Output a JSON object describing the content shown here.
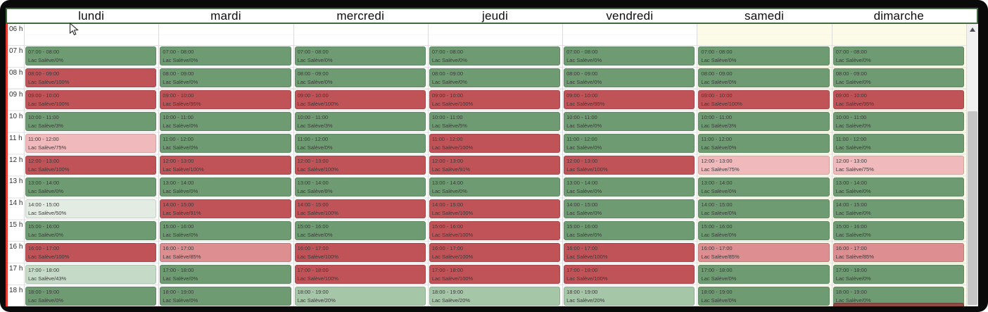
{
  "calendar": {
    "venue": "Lac Salève",
    "hour_labels": [
      "06 h",
      "07 h",
      "08 h",
      "09 h",
      "10 h",
      "11 h",
      "12 h",
      "13 h",
      "14 h",
      "15 h",
      "16 h",
      "17 h",
      "18 h"
    ],
    "color_scale": [
      {
        "min_pct": 91,
        "hex": "#c05357"
      },
      {
        "min_pct": 85,
        "hex": "#dd8e90"
      },
      {
        "min_pct": 75,
        "hex": "#f0b9bc"
      },
      {
        "min_pct": 50,
        "hex": "#e3ece3"
      },
      {
        "min_pct": 43,
        "hex": "#c6dbc7"
      },
      {
        "min_pct": 20,
        "hex": "#a6c6a8"
      },
      {
        "min_pct": 0,
        "hex": "#6f9b72"
      }
    ],
    "accent_colors": {
      "header_border": "#3f6b3f",
      "gutter_line": "#e6392f",
      "cutoff_event": "#8e4a43"
    },
    "days": [
      {
        "label": "lundi",
        "weekend": false,
        "cutoff_next_event": false,
        "events": [
          {
            "time": "07:00 - 08:00",
            "label": "Lac Salève/0%",
            "pct": 0
          },
          {
            "time": "08:00 - 09:00",
            "label": "Lac Salève/100%",
            "pct": 100
          },
          {
            "time": "09:00 - 10:00",
            "label": "Lac Salève/100%",
            "pct": 100
          },
          {
            "time": "10:00 - 11:00",
            "label": "Lac Salève/3%",
            "pct": 3
          },
          {
            "time": "11:00 - 12:00",
            "label": "Lac Salève/75%",
            "pct": 75
          },
          {
            "time": "12:00 - 13:00",
            "label": "Lac Salève/100%",
            "pct": 100
          },
          {
            "time": "13:00 - 14:00",
            "label": "Lac Salève/0%",
            "pct": 0
          },
          {
            "time": "14:00 - 15:00",
            "label": "Lac Salève/50%",
            "pct": 50
          },
          {
            "time": "15:00 - 16:00",
            "label": "Lac Salève/0%",
            "pct": 0
          },
          {
            "time": "16:00 - 17:00",
            "label": "Lac Salève/100%",
            "pct": 100
          },
          {
            "time": "17:00 - 18:00",
            "label": "Lac Salève/43%",
            "pct": 43
          },
          {
            "time": "18:00 - 19:00",
            "label": "Lac Salève/0%",
            "pct": 0
          }
        ]
      },
      {
        "label": "mardi",
        "weekend": false,
        "cutoff_next_event": false,
        "events": [
          {
            "time": "07:00 - 08:00",
            "label": "Lac Salève/0%",
            "pct": 0
          },
          {
            "time": "08:00 - 09:00",
            "label": "Lac Salève/0%",
            "pct": 0
          },
          {
            "time": "09:00 - 10:00",
            "label": "Lac Salève/95%",
            "pct": 95
          },
          {
            "time": "10:00 - 11:00",
            "label": "Lac Salève/0%",
            "pct": 0
          },
          {
            "time": "11:00 - 12:00",
            "label": "Lac Salève/0%",
            "pct": 0
          },
          {
            "time": "12:00 - 13:00",
            "label": "Lac Salève/100%",
            "pct": 100
          },
          {
            "time": "13:00 - 14:00",
            "label": "Lac Salève/0%",
            "pct": 0
          },
          {
            "time": "14:00 - 15:00",
            "label": "Lac Salève/91%",
            "pct": 91
          },
          {
            "time": "15:00 - 16:00",
            "label": "Lac Salève/0%",
            "pct": 0
          },
          {
            "time": "16:00 - 17:00",
            "label": "Lac Salève/85%",
            "pct": 85
          },
          {
            "time": "17:00 - 18:00",
            "label": "Lac Salève/0%",
            "pct": 0
          },
          {
            "time": "18:00 - 19:00",
            "label": "Lac Salève/0%",
            "pct": 0
          }
        ]
      },
      {
        "label": "mercredi",
        "weekend": false,
        "cutoff_next_event": false,
        "events": [
          {
            "time": "07:00 - 08:00",
            "label": "Lac Salève/0%",
            "pct": 0
          },
          {
            "time": "08:00 - 09:00",
            "label": "Lac Salève/0%",
            "pct": 0
          },
          {
            "time": "09:00 - 10:00",
            "label": "Lac Salève/100%",
            "pct": 100
          },
          {
            "time": "10:00 - 11:00",
            "label": "Lac Salève/3%",
            "pct": 3
          },
          {
            "time": "11:00 - 12:00",
            "label": "Lac Salève/0%",
            "pct": 0
          },
          {
            "time": "12:00 - 13:00",
            "label": "Lac Salève/100%",
            "pct": 100
          },
          {
            "time": "13:00 - 14:00",
            "label": "Lac Salève/8%",
            "pct": 8
          },
          {
            "time": "14:00 - 15:00",
            "label": "Lac Salève/100%",
            "pct": 100
          },
          {
            "time": "15:00 - 16:00",
            "label": "Lac Salève/0%",
            "pct": 0
          },
          {
            "time": "16:00 - 17:00",
            "label": "Lac Salève/100%",
            "pct": 100
          },
          {
            "time": "17:00 - 18:00",
            "label": "Lac Salève/100%",
            "pct": 100
          },
          {
            "time": "18:00 - 19:00",
            "label": "Lac Salève/20%",
            "pct": 20
          }
        ]
      },
      {
        "label": "jeudi",
        "weekend": false,
        "cutoff_next_event": false,
        "events": [
          {
            "time": "07:00 - 08:00",
            "label": "Lac Salève/0%",
            "pct": 0
          },
          {
            "time": "08:00 - 09:00",
            "label": "Lac Salève/0%",
            "pct": 0
          },
          {
            "time": "09:00 - 10:00",
            "label": "Lac Salève/100%",
            "pct": 100
          },
          {
            "time": "10:00 - 11:00",
            "label": "Lac Salève/5%",
            "pct": 5
          },
          {
            "time": "11:00 - 12:00",
            "label": "Lac Salève/100%",
            "pct": 100
          },
          {
            "time": "12:00 - 13:00",
            "label": "Lac Salève/91%",
            "pct": 91
          },
          {
            "time": "13:00 - 14:00",
            "label": "Lac Salève/0%",
            "pct": 0
          },
          {
            "time": "14:00 - 15:00",
            "label": "Lac Salève/100%",
            "pct": 100
          },
          {
            "time": "15:00 - 16:00",
            "label": "Lac Salève/100%",
            "pct": 100
          },
          {
            "time": "16:00 - 17:00",
            "label": "Lac Salève/100%",
            "pct": 100
          },
          {
            "time": "17:00 - 18:00",
            "label": "Lac Salève/100%",
            "pct": 100
          },
          {
            "time": "18:00 - 19:00",
            "label": "Lac Salève/20%",
            "pct": 20
          }
        ]
      },
      {
        "label": "vendredi",
        "weekend": false,
        "cutoff_next_event": false,
        "events": [
          {
            "time": "07:00 - 08:00",
            "label": "Lac Salève/0%",
            "pct": 0
          },
          {
            "time": "08:00 - 09:00",
            "label": "Lac Salève/0%",
            "pct": 0
          },
          {
            "time": "09:00 - 10:00",
            "label": "Lac Salève/95%",
            "pct": 95
          },
          {
            "time": "10:00 - 11:00",
            "label": "Lac Salève/0%",
            "pct": 0
          },
          {
            "time": "11:00 - 12:00",
            "label": "Lac Salève/0%",
            "pct": 0
          },
          {
            "time": "12:00 - 13:00",
            "label": "Lac Salève/100%",
            "pct": 100
          },
          {
            "time": "13:00 - 14:00",
            "label": "Lac Salève/0%",
            "pct": 0
          },
          {
            "time": "14:00 - 15:00",
            "label": "Lac Salève/0%",
            "pct": 0
          },
          {
            "time": "15:00 - 16:00",
            "label": "Lac Salève/0%",
            "pct": 0
          },
          {
            "time": "16:00 - 17:00",
            "label": "Lac Salève/100%",
            "pct": 100
          },
          {
            "time": "17:00 - 18:00",
            "label": "Lac Salève/100%",
            "pct": 100
          },
          {
            "time": "18:00 - 19:00",
            "label": "Lac Salève/20%",
            "pct": 20
          }
        ]
      },
      {
        "label": "samedi",
        "weekend": true,
        "cutoff_next_event": false,
        "events": [
          {
            "time": "07:00 - 08:00",
            "label": "Lac Salève/0%",
            "pct": 0
          },
          {
            "time": "08:00 - 09:00",
            "label": "Lac Salève/0%",
            "pct": 0
          },
          {
            "time": "09:00 - 10:00",
            "label": "Lac Salève/100%",
            "pct": 100
          },
          {
            "time": "10:00 - 11:00",
            "label": "Lac Salève/3%",
            "pct": 3
          },
          {
            "time": "11:00 - 12:00",
            "label": "Lac Salève/0%",
            "pct": 0
          },
          {
            "time": "12:00 - 13:00",
            "label": "Lac Salève/75%",
            "pct": 75
          },
          {
            "time": "13:00 - 14:00",
            "label": "Lac Salève/0%",
            "pct": 0
          },
          {
            "time": "14:00 - 15:00",
            "label": "Lac Salève/0%",
            "pct": 0
          },
          {
            "time": "15:00 - 16:00",
            "label": "Lac Salève/0%",
            "pct": 0
          },
          {
            "time": "16:00 - 17:00",
            "label": "Lac Salève/85%",
            "pct": 85
          },
          {
            "time": "17:00 - 18:00",
            "label": "Lac Salève/0%",
            "pct": 0
          },
          {
            "time": "18:00 - 19:00",
            "label": "Lac Salève/0%",
            "pct": 0
          }
        ]
      },
      {
        "label": "dimarche",
        "weekend": true,
        "cutoff_next_event": true,
        "events": [
          {
            "time": "07:00 - 08:00",
            "label": "Lac Salève/0%",
            "pct": 0
          },
          {
            "time": "08:00 - 09:00",
            "label": "Lac Salève/0%",
            "pct": 0
          },
          {
            "time": "09:00 - 10:00",
            "label": "Lac Salève/95%",
            "pct": 95
          },
          {
            "time": "10:00 - 11:00",
            "label": "Lac Salève/0%",
            "pct": 0
          },
          {
            "time": "11:00 - 12:00",
            "label": "Lac Salève/0%",
            "pct": 0
          },
          {
            "time": "12:00 - 13:00",
            "label": "Lac Salève/75%",
            "pct": 75
          },
          {
            "time": "13:00 - 14:00",
            "label": "Lac Salève/0%",
            "pct": 0
          },
          {
            "time": "14:00 - 15:00",
            "label": "Lac Salève/0%",
            "pct": 0
          },
          {
            "time": "15:00 - 16:00",
            "label": "Lac Salève/0%",
            "pct": 0
          },
          {
            "time": "16:00 - 17:00",
            "label": "Lac Salève/85%",
            "pct": 85
          },
          {
            "time": "17:00 - 18:00",
            "label": "Lac Salève/0%",
            "pct": 0
          },
          {
            "time": "18:00 - 19:00",
            "label": "Lac Salève/0%",
            "pct": 0
          }
        ]
      }
    ]
  }
}
